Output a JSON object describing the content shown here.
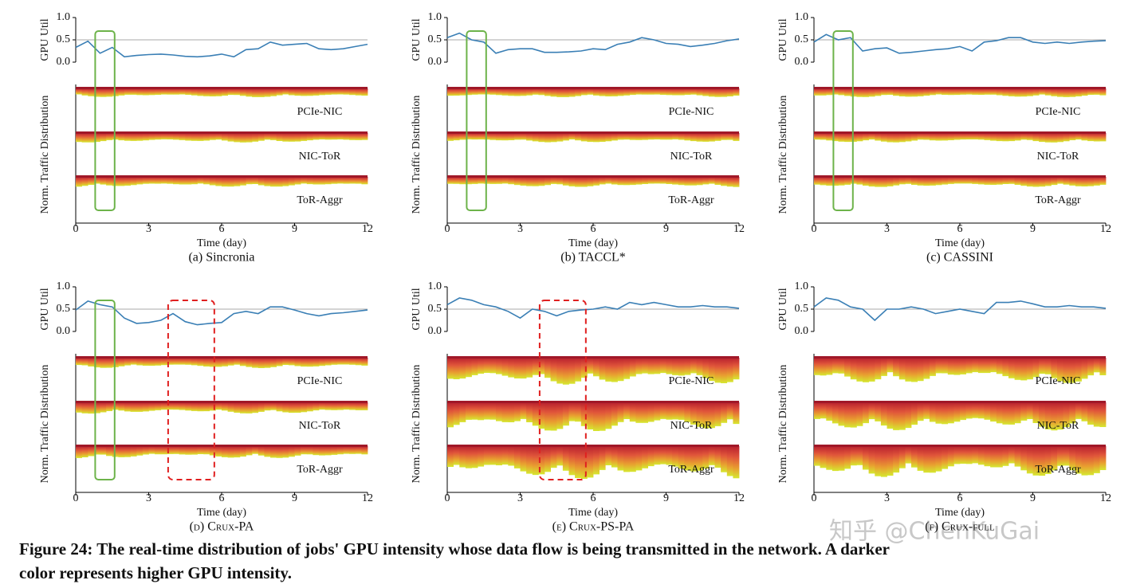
{
  "chart_data": [
    {
      "type": "line",
      "title": "(a) Sincronia",
      "ylabel": "GPU Util",
      "ylabel2": "Norm. Traffic Distribution",
      "xlabel": "Time (day)",
      "color": "#3a7fb5",
      "x": [
        0,
        0.5,
        1,
        1.5,
        2,
        2.5,
        3,
        3.5,
        4,
        4.5,
        5,
        5.5,
        6,
        6.5,
        7,
        7.5,
        8,
        8.5,
        9,
        9.5,
        10,
        10.5,
        11,
        11.5,
        12
      ],
      "values": [
        0.33,
        0.47,
        0.2,
        0.33,
        0.12,
        0.15,
        0.17,
        0.18,
        0.16,
        0.13,
        0.12,
        0.14,
        0.18,
        0.12,
        0.28,
        0.3,
        0.45,
        0.38,
        0.4,
        0.42,
        0.3,
        0.28,
        0.3,
        0.35,
        0.4
      ],
      "xlim": [
        0,
        12
      ],
      "xticks": [
        0,
        3,
        6,
        9,
        12
      ],
      "ylim": [
        0,
        1
      ],
      "yticks": [
        {
          "value": 0,
          "label": "0.0"
        },
        {
          "value": 0.5,
          "label": "0.5"
        },
        {
          "value": 1,
          "label": "1.0"
        }
      ],
      "bands": [
        "PCIe-NIC",
        "NIC-ToR",
        "ToR-Aggr"
      ]
    },
    {
      "type": "line",
      "title": "(b) TACCL*",
      "ylabel": "GPU Util",
      "ylabel2": "Norm. Traffic Distribution",
      "xlabel": "Time (day)",
      "color": "#3a7fb5",
      "x": [
        0,
        0.5,
        1,
        1.5,
        2,
        2.5,
        3,
        3.5,
        4,
        4.5,
        5,
        5.5,
        6,
        6.5,
        7,
        7.5,
        8,
        8.5,
        9,
        9.5,
        10,
        10.5,
        11,
        11.5,
        12
      ],
      "values": [
        0.55,
        0.65,
        0.5,
        0.45,
        0.2,
        0.28,
        0.3,
        0.3,
        0.22,
        0.22,
        0.23,
        0.25,
        0.3,
        0.28,
        0.4,
        0.45,
        0.55,
        0.5,
        0.42,
        0.4,
        0.35,
        0.38,
        0.42,
        0.48,
        0.52
      ],
      "xlim": [
        0,
        12
      ],
      "xticks": [
        0,
        3,
        6,
        9,
        12
      ],
      "ylim": [
        0,
        1
      ],
      "yticks": [
        {
          "value": 0,
          "label": "0.0"
        },
        {
          "value": 0.5,
          "label": "0.5"
        },
        {
          "value": 1,
          "label": "1.0"
        }
      ],
      "bands": [
        "PCIe-NIC",
        "NIC-ToR",
        "ToR-Aggr"
      ]
    },
    {
      "type": "line",
      "title": "(c) CASSINI",
      "ylabel": "GPU Util",
      "ylabel2": "Norm. Traffic Distribution",
      "xlabel": "Time (day)",
      "color": "#3a7fb5",
      "x": [
        0,
        0.5,
        1,
        1.5,
        2,
        2.5,
        3,
        3.5,
        4,
        4.5,
        5,
        5.5,
        6,
        6.5,
        7,
        7.5,
        8,
        8.5,
        9,
        9.5,
        10,
        10.5,
        11,
        11.5,
        12
      ],
      "values": [
        0.45,
        0.62,
        0.5,
        0.55,
        0.25,
        0.3,
        0.32,
        0.2,
        0.22,
        0.25,
        0.28,
        0.3,
        0.35,
        0.25,
        0.45,
        0.48,
        0.55,
        0.55,
        0.45,
        0.42,
        0.45,
        0.42,
        0.45,
        0.47,
        0.48
      ],
      "xlim": [
        0,
        12
      ],
      "xticks": [
        0,
        3,
        6,
        9,
        12
      ],
      "ylim": [
        0,
        1
      ],
      "yticks": [
        {
          "value": 0,
          "label": "0.0"
        },
        {
          "value": 0.5,
          "label": "0.5"
        },
        {
          "value": 1,
          "label": "1.0"
        }
      ],
      "bands": [
        "PCIe-NIC",
        "NIC-ToR",
        "ToR-Aggr"
      ]
    },
    {
      "type": "line",
      "title": "(d) Crux-PA",
      "ylabel": "GPU Util",
      "ylabel2": "Norm. Traffic Distribution",
      "xlabel": "Time (day)",
      "color": "#3a7fb5",
      "x": [
        0,
        0.5,
        1,
        1.5,
        2,
        2.5,
        3,
        3.5,
        4,
        4.5,
        5,
        5.5,
        6,
        6.5,
        7,
        7.5,
        8,
        8.5,
        9,
        9.5,
        10,
        10.5,
        11,
        11.5,
        12
      ],
      "values": [
        0.48,
        0.68,
        0.6,
        0.55,
        0.3,
        0.18,
        0.2,
        0.25,
        0.4,
        0.22,
        0.15,
        0.18,
        0.2,
        0.4,
        0.45,
        0.4,
        0.55,
        0.55,
        0.48,
        0.4,
        0.35,
        0.4,
        0.42,
        0.45,
        0.48
      ],
      "xlim": [
        0,
        12
      ],
      "xticks": [
        0,
        3,
        6,
        9,
        12
      ],
      "ylim": [
        0,
        1
      ],
      "yticks": [
        {
          "value": 0,
          "label": "0.0"
        },
        {
          "value": 0.5,
          "label": "0.5"
        },
        {
          "value": 1,
          "label": "1.0"
        }
      ],
      "bands": [
        "PCIe-NIC",
        "NIC-ToR",
        "ToR-Aggr"
      ]
    },
    {
      "type": "line",
      "title": "(e) Crux-PS-PA",
      "ylabel": "GPU Util",
      "ylabel2": "Norm. Traffic Distribution",
      "xlabel": "Time (day)",
      "color": "#3a7fb5",
      "x": [
        0,
        0.5,
        1,
        1.5,
        2,
        2.5,
        3,
        3.5,
        4,
        4.5,
        5,
        5.5,
        6,
        6.5,
        7,
        7.5,
        8,
        8.5,
        9,
        9.5,
        10,
        10.5,
        11,
        11.5,
        12
      ],
      "values": [
        0.6,
        0.75,
        0.7,
        0.6,
        0.55,
        0.45,
        0.3,
        0.5,
        0.45,
        0.35,
        0.45,
        0.48,
        0.5,
        0.55,
        0.5,
        0.65,
        0.6,
        0.65,
        0.6,
        0.55,
        0.55,
        0.58,
        0.55,
        0.55,
        0.52
      ],
      "xlim": [
        0,
        12
      ],
      "xticks": [
        0,
        3,
        6,
        9,
        12
      ],
      "ylim": [
        0,
        1
      ],
      "yticks": [
        {
          "value": 0,
          "label": "0.0"
        },
        {
          "value": 0.5,
          "label": "0.5"
        },
        {
          "value": 1,
          "label": "1.0"
        }
      ],
      "bands": [
        "PCIe-NIC",
        "NIC-ToR",
        "ToR-Aggr"
      ]
    },
    {
      "type": "line",
      "title": "(f) Crux-full",
      "ylabel": "GPU Util",
      "ylabel2": "Norm. Traffic Distribution",
      "xlabel": "Time (day)",
      "color": "#3a7fb5",
      "x": [
        0,
        0.5,
        1,
        1.5,
        2,
        2.5,
        3,
        3.5,
        4,
        4.5,
        5,
        5.5,
        6,
        6.5,
        7,
        7.5,
        8,
        8.5,
        9,
        9.5,
        10,
        10.5,
        11,
        11.5,
        12
      ],
      "values": [
        0.55,
        0.75,
        0.7,
        0.55,
        0.5,
        0.25,
        0.5,
        0.5,
        0.55,
        0.5,
        0.4,
        0.45,
        0.5,
        0.45,
        0.4,
        0.65,
        0.65,
        0.68,
        0.62,
        0.55,
        0.55,
        0.58,
        0.55,
        0.55,
        0.52
      ],
      "xlim": [
        0,
        12
      ],
      "xticks": [
        0,
        3,
        6,
        9,
        12
      ],
      "ylim": [
        0,
        1
      ],
      "yticks": [
        {
          "value": 0,
          "label": "0.0"
        },
        {
          "value": 0.5,
          "label": "0.5"
        },
        {
          "value": 1,
          "label": "1.0"
        }
      ],
      "bands": [
        "PCIe-NIC",
        "NIC-ToR",
        "ToR-Aggr"
      ]
    }
  ],
  "figure_caption": [
    "Figure 24: The real-time distribution of jobs' GPU intensity whose data flow is being transmitted in the network. A darker",
    "color represents higher GPU intensity."
  ],
  "watermark": "知乎 @ChenKuGai"
}
